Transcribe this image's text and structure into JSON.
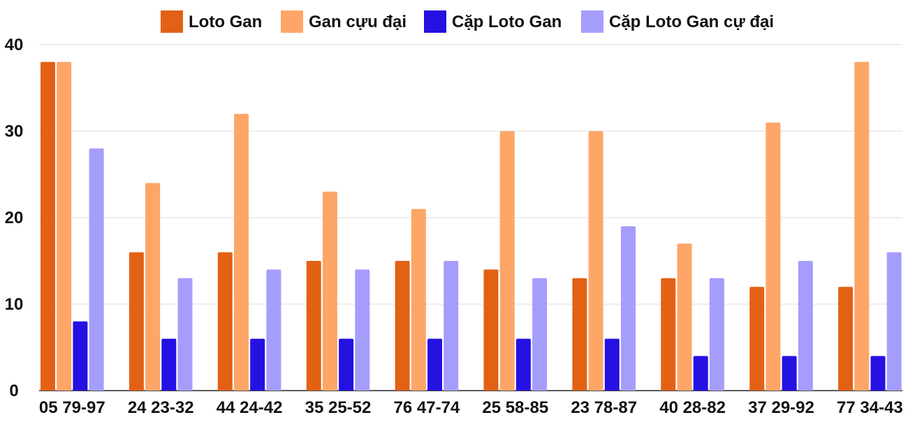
{
  "chart_data": {
    "type": "bar",
    "title": "",
    "xlabel": "",
    "ylabel": "",
    "ylim": [
      0,
      40
    ],
    "yticks": [
      0,
      10,
      20,
      30,
      40
    ],
    "grid": true,
    "legend_position": "top-center",
    "categories": [
      "05 79-97",
      "24 23-32",
      "44 24-42",
      "35 25-52",
      "76 47-74",
      "25 58-85",
      "23 78-87",
      "40 28-82",
      "37 29-92",
      "77 34-43"
    ],
    "series": [
      {
        "name": "Loto Gan",
        "color": "#e26115",
        "values": [
          38,
          16,
          16,
          15,
          15,
          14,
          13,
          13,
          12,
          12
        ]
      },
      {
        "name": "Gan cựu đại",
        "color": "#fda668",
        "values": [
          38,
          24,
          32,
          23,
          21,
          30,
          30,
          17,
          31,
          38
        ]
      },
      {
        "name": "Cặp Loto Gan",
        "color": "#2511e2",
        "values": [
          8,
          6,
          6,
          6,
          6,
          6,
          6,
          4,
          4,
          4
        ]
      },
      {
        "name": "Cặp Loto Gan cự đại",
        "color": "#a59dfc",
        "values": [
          28,
          13,
          14,
          14,
          15,
          13,
          19,
          13,
          15,
          16
        ]
      }
    ]
  }
}
